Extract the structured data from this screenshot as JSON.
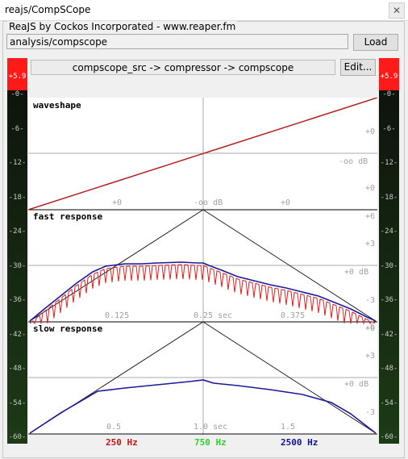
{
  "window": {
    "title": "reajs/CompSCope"
  },
  "plugin": {
    "group_label": "ReaJS by Cockos Incorporated - www.reaper.fm",
    "path": "analysis/compscope",
    "load_label": "Load"
  },
  "chain": {
    "text": "compscope_src -> compressor -> compscope",
    "edit_label": "Edit..."
  },
  "meters": {
    "peak_left": "+5.9",
    "peak_right": "+5.9",
    "ticks": [
      "-0-",
      "-6-",
      "-12-",
      "-18-",
      "-24-",
      "-30-",
      "-36-",
      "-42-",
      "-48-",
      "-54-",
      "-60-"
    ]
  },
  "panels": {
    "waveshape": {
      "title": "waveshape",
      "xlabels": [
        "+0",
        "-oo dB",
        "+0"
      ],
      "ylabels": [
        "+0",
        "-oo dB",
        "+0"
      ]
    },
    "fast": {
      "title": "fast response",
      "xlabels": [
        "0.125",
        "0.25 sec",
        "0.375"
      ],
      "ylabels": [
        "+6",
        "+3",
        "+0 dB",
        "-3",
        "-6"
      ]
    },
    "slow": {
      "title": "slow response",
      "xlabels": [
        "0.5",
        "1.0 sec",
        "1.5"
      ],
      "ylabels": [
        "+6",
        "+3",
        "+0 dB",
        "-3",
        "-6"
      ]
    }
  },
  "legend": [
    {
      "label": "250 Hz",
      "color": "#c81414"
    },
    {
      "label": "750 Hz",
      "color": "#2bd42b"
    },
    {
      "label": "2500 Hz",
      "color": "#14148c"
    }
  ],
  "colors": {
    "waveshape_line": "#b41e1e",
    "fast_red": "#e02020",
    "env_blue": "#1a1a9a",
    "meter_peak": "#ff1a1a"
  }
}
